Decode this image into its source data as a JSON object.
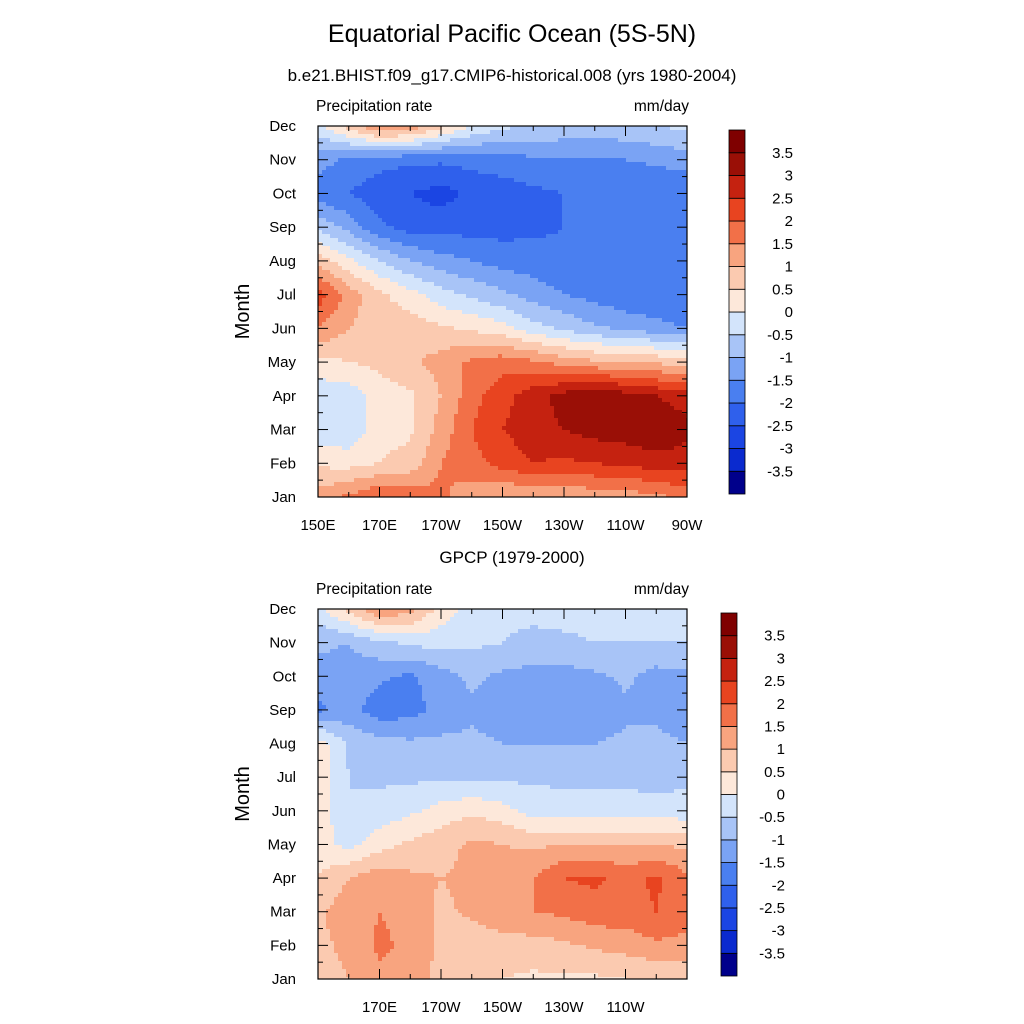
{
  "title": "Equatorial Pacific Ocean (5S-5N)",
  "subtitle": "b.e21.BHIST.f09_g17.CMIP6-historical.008 (yrs 1980-2004)",
  "panel2_title": "GPCP (1979-2000)",
  "colors": {
    "levels": [
      -3.5,
      -3,
      -2.5,
      -2,
      -1.5,
      -1,
      -0.5,
      0,
      0.5,
      1,
      1.5,
      2,
      2.5,
      3,
      3.5
    ],
    "palette": [
      "#00008b",
      "#0a2acf",
      "#1b45e3",
      "#2f60ec",
      "#4a7ff0",
      "#7aa3f4",
      "#a8c4f7",
      "#d3e4fb",
      "#fde8da",
      "#fbcab0",
      "#f8a47f",
      "#f27048",
      "#e84420",
      "#c52210",
      "#9a0f06",
      "#7f0000"
    ]
  },
  "chart_data": [
    {
      "type": "heatmap",
      "title": "Precipitation rate",
      "units": "mm/day",
      "ylabel": "Month",
      "xlim": [
        150,
        270
      ],
      "x_ticks": [
        150,
        170,
        190,
        210,
        230,
        250,
        270
      ],
      "x_tick_labels": [
        "150E",
        "170E",
        "170W",
        "150W",
        "130W",
        "110W",
        "90W"
      ],
      "y_tick_labels": [
        "Jan",
        "Feb",
        "Mar",
        "Apr",
        "May",
        "Jun",
        "Jul",
        "Aug",
        "Sep",
        "Oct",
        "Nov",
        "Dec"
      ],
      "x": [
        150,
        160,
        170,
        180,
        190,
        200,
        210,
        220,
        230,
        240,
        250,
        260,
        270
      ],
      "y": [
        "Jan",
        "Feb",
        "Mar",
        "Apr",
        "May",
        "Jun",
        "Jul",
        "Aug",
        "Sep",
        "Oct",
        "Nov",
        "Dec"
      ],
      "z": [
        [
          1.2,
          1.6,
          2.0,
          1.8,
          1.6,
          1.2,
          1.0,
          1.0,
          1.0,
          1.2,
          1.2,
          1.4,
          1.6
        ],
        [
          0.4,
          0.3,
          0.5,
          0.7,
          1.5,
          1.8,
          2.2,
          2.5,
          2.4,
          2.5,
          2.6,
          2.8,
          2.8
        ],
        [
          -0.3,
          -0.4,
          0.3,
          0.4,
          1.2,
          2.0,
          2.5,
          2.8,
          3.0,
          3.2,
          3.3,
          3.4,
          3.1
        ],
        [
          -0.3,
          -0.3,
          0.3,
          0.4,
          1.0,
          1.8,
          2.3,
          2.8,
          3.2,
          3.5,
          3.2,
          3.0,
          2.8
        ],
        [
          0.3,
          0.5,
          0.6,
          0.9,
          1.2,
          1.6,
          1.8,
          1.6,
          1.3,
          1.1,
          1.0,
          0.9,
          0.8
        ],
        [
          1.5,
          1.0,
          0.8,
          0.8,
          0.6,
          0.4,
          0.2,
          -0.3,
          -0.6,
          -0.9,
          -1.1,
          -1.3,
          -1.5
        ],
        [
          2.3,
          1.3,
          0.6,
          0.2,
          -0.3,
          -0.6,
          -0.9,
          -1.2,
          -1.5,
          -1.7,
          -1.9,
          -2.0,
          -2.0
        ],
        [
          0.8,
          0.1,
          -0.5,
          -1.0,
          -1.3,
          -1.5,
          -1.7,
          -1.8,
          -1.9,
          -2.0,
          -2.0,
          -2.0,
          -2.0
        ],
        [
          -0.6,
          -1.2,
          -1.9,
          -2.2,
          -2.2,
          -2.2,
          -2.2,
          -2.1,
          -2.0,
          -2.0,
          -2.0,
          -2.0,
          -2.0
        ],
        [
          -1.8,
          -2.0,
          -2.3,
          -2.5,
          -2.7,
          -2.4,
          -2.3,
          -2.1,
          -2.0,
          -2.0,
          -2.0,
          -2.0,
          -2.0
        ],
        [
          -1.3,
          -1.6,
          -1.8,
          -1.9,
          -1.9,
          -1.8,
          -1.7,
          -1.6,
          -1.6,
          -1.6,
          -1.5,
          -1.4,
          -1.2
        ],
        [
          -0.2,
          0.7,
          1.6,
          1.4,
          0.7,
          0.0,
          -0.4,
          -0.5,
          -0.6,
          -0.7,
          -0.6,
          -0.5,
          -0.4
        ]
      ]
    },
    {
      "type": "heatmap",
      "title": "Precipitation rate",
      "units": "mm/day",
      "ylabel": "Month",
      "xlim": [
        150,
        270
      ],
      "x_ticks": [
        170,
        190,
        210,
        230,
        250
      ],
      "x_tick_labels": [
        "170E",
        "170W",
        "150W",
        "130W",
        "110W"
      ],
      "y_tick_labels": [
        "Jan",
        "Feb",
        "Mar",
        "Apr",
        "May",
        "Jun",
        "Jul",
        "Aug",
        "Sep",
        "Oct",
        "Nov",
        "Dec"
      ],
      "x": [
        150,
        160,
        170,
        180,
        190,
        200,
        210,
        220,
        230,
        240,
        250,
        260,
        270
      ],
      "y": [
        "Jan",
        "Feb",
        "Mar",
        "Apr",
        "May",
        "Jun",
        "Jul",
        "Aug",
        "Sep",
        "Oct",
        "Nov",
        "Dec"
      ],
      "z": [
        [
          0.8,
          1.0,
          1.4,
          1.3,
          0.8,
          0.6,
          0.5,
          0.4,
          0.4,
          0.4,
          0.5,
          0.5,
          0.5
        ],
        [
          0.9,
          1.1,
          1.6,
          1.4,
          0.9,
          0.7,
          0.8,
          0.8,
          0.9,
          1.1,
          1.2,
          1.4,
          1.4
        ],
        [
          0.9,
          1.3,
          1.5,
          1.3,
          0.9,
          1.1,
          1.3,
          1.5,
          1.6,
          1.8,
          1.8,
          2.0,
          1.6
        ],
        [
          0.5,
          1.0,
          1.3,
          1.1,
          1.0,
          1.1,
          1.3,
          1.5,
          2.0,
          2.1,
          1.8,
          2.1,
          1.6
        ],
        [
          0.3,
          -0.2,
          0.3,
          0.6,
          0.8,
          1.1,
          1.0,
          0.9,
          1.0,
          1.0,
          1.0,
          1.0,
          0.9
        ],
        [
          0.3,
          -0.5,
          -0.3,
          -0.1,
          0.2,
          0.4,
          0.2,
          -0.2,
          -0.3,
          -0.3,
          -0.3,
          -0.3,
          -0.3
        ],
        [
          0.3,
          -0.5,
          -0.6,
          -0.6,
          -0.6,
          -0.6,
          -0.6,
          -0.6,
          -0.6,
          -0.6,
          -0.6,
          -0.7,
          -0.6
        ],
        [
          0.3,
          -0.6,
          -0.8,
          -0.9,
          -0.9,
          -0.9,
          -1.0,
          -1.0,
          -1.0,
          -1.0,
          -0.9,
          -0.9,
          -1.0
        ],
        [
          -1.6,
          -1.3,
          -1.8,
          -1.7,
          -1.3,
          -1.1,
          -1.2,
          -1.3,
          -1.3,
          -1.4,
          -1.1,
          -1.1,
          -1.3
        ],
        [
          -1.2,
          -1.2,
          -1.4,
          -1.6,
          -1.2,
          -0.9,
          -1.1,
          -1.2,
          -1.2,
          -1.1,
          -0.9,
          -1.2,
          -1.1
        ],
        [
          -0.9,
          -1.0,
          -0.6,
          -0.4,
          -0.3,
          -0.4,
          -0.5,
          -0.6,
          -0.6,
          -0.5,
          -0.5,
          -0.5,
          -0.5
        ],
        [
          -0.2,
          0.7,
          1.5,
          1.2,
          0.3,
          -0.2,
          -0.4,
          -0.4,
          -0.3,
          -0.3,
          -0.3,
          -0.4,
          -0.4
        ]
      ]
    }
  ]
}
